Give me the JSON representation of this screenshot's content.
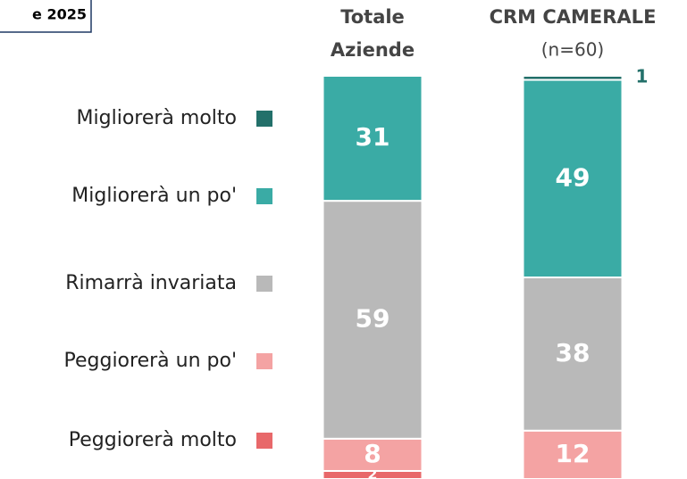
{
  "chart_data": {
    "type": "stacked_bar",
    "annotations": [
      "e 2025"
    ],
    "categories": [
      "Totale Aziende",
      "CRM CAMERALE"
    ],
    "category_subtitles": [
      null,
      "(n=60)"
    ],
    "ylim": [
      0,
      100
    ],
    "series": [
      {
        "name": "Migliorerà molto",
        "color": "#23706a",
        "values": [
          0,
          1
        ]
      },
      {
        "name": "Migliorerà un po'",
        "color": "#3aaba5",
        "values": [
          31,
          49
        ]
      },
      {
        "name": "Rimarrà invariata",
        "color": "#b9b9b9",
        "values": [
          59,
          38
        ]
      },
      {
        "name": "Peggiorerà un po'",
        "color": "#f4a3a3",
        "values": [
          8,
          12
        ]
      },
      {
        "name": "Peggiorerà molto",
        "color": "#e8686a",
        "values": [
          2,
          0
        ]
      }
    ]
  }
}
